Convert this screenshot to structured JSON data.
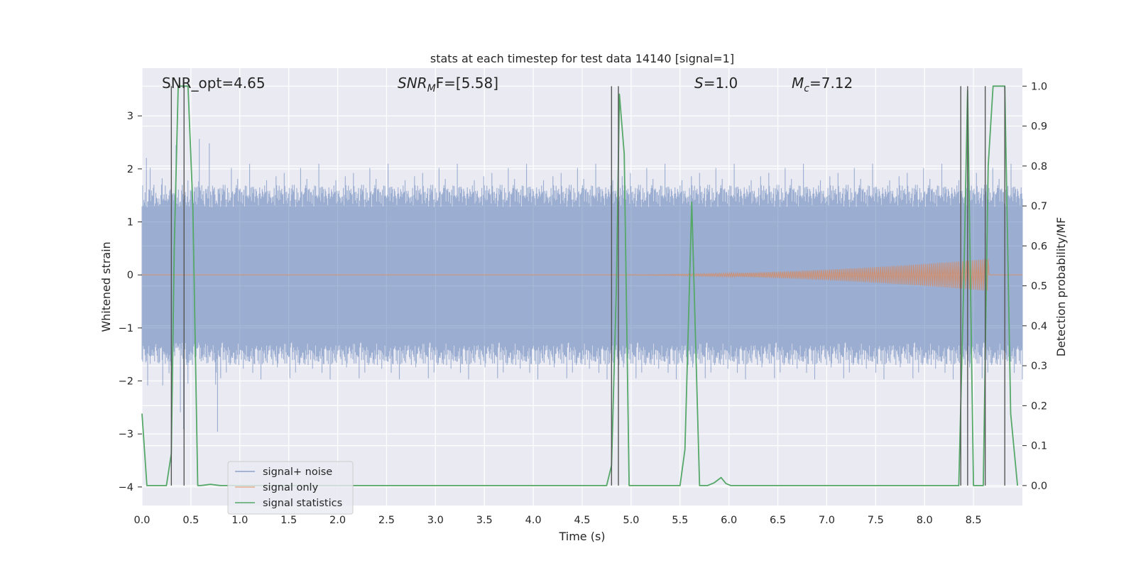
{
  "chart_data": {
    "type": "line",
    "title": "stats at each timestep for test data 14140 [signal=1]",
    "xlabel": "Time (s)",
    "ylabel": "Whitened strain",
    "y2label": "Detection probability/MF",
    "xlim": [
      0.0,
      9.0
    ],
    "ylim": [
      -4.35,
      3.9
    ],
    "y2lim": [
      -0.05,
      1.045
    ],
    "x_ticks": [
      0.0,
      0.5,
      1.0,
      1.5,
      2.0,
      2.5,
      3.0,
      3.5,
      4.0,
      4.5,
      5.0,
      5.5,
      6.0,
      6.5,
      7.0,
      7.5,
      8.0,
      8.5
    ],
    "x_tick_labels": [
      "0.0",
      "0.5",
      "1.0",
      "1.5",
      "2.0",
      "2.5",
      "3.0",
      "3.5",
      "4.0",
      "4.5",
      "5.0",
      "5.5",
      "6.0",
      "6.5",
      "7.0",
      "7.5",
      "8.0",
      "8.5"
    ],
    "y_ticks": [
      3,
      2,
      1,
      0,
      -1,
      -2,
      -3,
      -4
    ],
    "y_tick_labels": [
      "3",
      "2",
      "1",
      "0",
      "−1",
      "−2",
      "−3",
      "−4"
    ],
    "y2_ticks": [
      1.0,
      0.9,
      0.8,
      0.7,
      0.6,
      0.5,
      0.4,
      0.3,
      0.2,
      0.1,
      0.0
    ],
    "y2_tick_labels": [
      "1.0",
      "0.9",
      "0.8",
      "0.7",
      "0.6",
      "0.5",
      "0.4",
      "0.3",
      "0.2",
      "0.1",
      "0.0"
    ],
    "grid": true,
    "legend_placement": "lower-left",
    "annotations": {
      "snr_opt": "SNR_opt=4.65",
      "snr_mf_main": "SNR",
      "snr_mf_sub": "M",
      "snr_mf_rest": "F=[5.58]",
      "s_italic": "S",
      "s_rest": "=1.0",
      "mc_italic": "M",
      "mc_sub": "c",
      "mc_rest": "=7.12"
    },
    "series": [
      {
        "name": "signal+ noise",
        "color": "#4c72b0",
        "noise_envelope": {
          "typical_upper": 1.7,
          "typical_lower": -1.7,
          "max": 3.3,
          "min": -4.0
        }
      },
      {
        "name": "signal only",
        "color": "#dd8452",
        "chirp_start": 4.5,
        "chirp_peak_time": 8.65,
        "chirp_peak_amp": 0.3
      },
      {
        "name": "signal statistics",
        "color": "#55a868",
        "x": [
          0.0,
          0.05,
          0.1,
          0.25,
          0.3,
          0.33,
          0.37,
          0.42,
          0.45,
          0.47,
          0.52,
          0.57,
          0.6,
          0.7,
          0.8,
          4.75,
          4.8,
          4.85,
          4.88,
          4.93,
          4.98,
          5.5,
          5.55,
          5.62,
          5.7,
          5.78,
          5.85,
          5.92,
          5.97,
          6.02,
          6.1,
          8.35,
          8.4,
          8.44,
          8.5,
          8.6,
          8.65,
          8.7,
          8.75,
          8.82,
          8.88,
          8.95
        ],
        "y": [
          0.18,
          0.0,
          0.0,
          0.0,
          0.08,
          0.6,
          1.0,
          1.0,
          1.0,
          1.0,
          0.7,
          0.0,
          0.0,
          0.003,
          0.0,
          0.0,
          0.05,
          0.5,
          0.98,
          0.83,
          0.0,
          0.0,
          0.09,
          0.71,
          0.0,
          0.0,
          0.007,
          0.02,
          0.005,
          0.0,
          0.0,
          0.0,
          0.5,
          0.99,
          0.0,
          0.0,
          0.8,
          1.0,
          1.0,
          1.0,
          0.18,
          0.0
        ]
      }
    ],
    "vertical_lines_x": [
      0.3,
      0.43,
      4.8,
      4.87,
      8.37,
      8.44,
      8.62,
      8.82
    ],
    "vertical_lines_color": "#555555"
  }
}
